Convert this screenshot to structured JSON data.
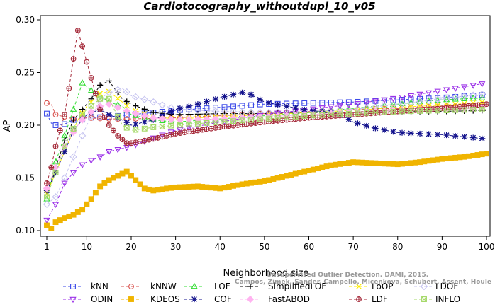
{
  "chart_data": {
    "type": "line",
    "title": "Cardiotocography_withoutdupl_10_v05",
    "xlabel": "Neighborhood size",
    "ylabel": "AP",
    "xlim": [
      1,
      100
    ],
    "ylim": [
      0.1,
      0.3
    ],
    "x_ticks": [
      1,
      10,
      20,
      30,
      40,
      50,
      60,
      70,
      80,
      90,
      100
    ],
    "y_ticks": [
      "0.10",
      "0.15",
      "0.20",
      "0.25",
      "0.30"
    ],
    "grid": false,
    "legend_placement": "bottom",
    "watermark": [
      "Campos, Zimek, Sander, Campello, Micenkova, Schubert, Assent, Houle",
      "Unsupervised Outlier Detection. DAMI, 2015."
    ],
    "series": [
      {
        "name": "kNN",
        "color": "#3b49e8",
        "marker": "square",
        "x": [
          1,
          2,
          3,
          5,
          7,
          10,
          15,
          20,
          30,
          40,
          50,
          60,
          70,
          80,
          90,
          100
        ],
        "y": [
          0.211,
          0.202,
          0.2,
          0.201,
          0.205,
          0.207,
          0.208,
          0.21,
          0.214,
          0.217,
          0.22,
          0.221,
          0.222,
          0.224,
          0.226,
          0.229
        ]
      },
      {
        "name": "kNNW",
        "color": "#d9534f",
        "marker": "circle",
        "x": [
          1,
          2,
          3,
          5,
          7,
          10,
          15,
          20,
          30,
          40,
          50,
          60,
          70,
          80,
          90,
          100
        ],
        "y": [
          0.221,
          0.22,
          0.21,
          0.208,
          0.206,
          0.207,
          0.206,
          0.206,
          0.207,
          0.209,
          0.211,
          0.213,
          0.215,
          0.216,
          0.218,
          0.219
        ]
      },
      {
        "name": "LOF",
        "color": "#33dd33",
        "marker": "triangle-up",
        "x": [
          1,
          2,
          3,
          5,
          7,
          9,
          11,
          13,
          15,
          18,
          20,
          25,
          30,
          40,
          50,
          60,
          70,
          80,
          90,
          100
        ],
        "y": [
          0.13,
          0.148,
          0.165,
          0.19,
          0.215,
          0.24,
          0.233,
          0.228,
          0.222,
          0.218,
          0.21,
          0.205,
          0.203,
          0.206,
          0.209,
          0.212,
          0.216,
          0.22,
          0.224,
          0.226
        ]
      },
      {
        "name": "SimplifiedLOF",
        "color": "#000000",
        "marker": "plus",
        "x": [
          1,
          2,
          3,
          5,
          7,
          9,
          11,
          13,
          15,
          18,
          20,
          25,
          30,
          40,
          50,
          60,
          70,
          80,
          90,
          100
        ],
        "y": [
          0.138,
          0.145,
          0.16,
          0.185,
          0.205,
          0.215,
          0.225,
          0.238,
          0.242,
          0.225,
          0.22,
          0.212,
          0.21,
          0.211,
          0.211,
          0.212,
          0.212,
          0.213,
          0.213,
          0.214
        ]
      },
      {
        "name": "LoOP",
        "color": "#ffee00",
        "marker": "x",
        "x": [
          1,
          3,
          5,
          8,
          10,
          13,
          15,
          18,
          20,
          25,
          30,
          40,
          50,
          60,
          70,
          80,
          90,
          100
        ],
        "y": [
          0.135,
          0.155,
          0.175,
          0.205,
          0.218,
          0.23,
          0.232,
          0.222,
          0.215,
          0.208,
          0.206,
          0.208,
          0.21,
          0.212,
          0.214,
          0.217,
          0.219,
          0.222
        ]
      },
      {
        "name": "LDOF",
        "color": "#c7c5f0",
        "marker": "diamond",
        "x": [
          1,
          3,
          5,
          8,
          10,
          13,
          15,
          18,
          20,
          25,
          30,
          40,
          50,
          60,
          70,
          80,
          90,
          100
        ],
        "y": [
          0.125,
          0.132,
          0.15,
          0.18,
          0.2,
          0.225,
          0.231,
          0.235,
          0.228,
          0.222,
          0.215,
          0.213,
          0.212,
          0.213,
          0.215,
          0.22,
          0.225,
          0.23
        ]
      },
      {
        "name": "ODIN",
        "color": "#9b30e8",
        "marker": "triangle-down",
        "x": [
          1,
          3,
          5,
          8,
          10,
          13,
          15,
          20,
          25,
          30,
          40,
          50,
          60,
          70,
          80,
          90,
          100
        ],
        "y": [
          0.11,
          0.125,
          0.145,
          0.16,
          0.165,
          0.17,
          0.175,
          0.18,
          0.188,
          0.195,
          0.203,
          0.21,
          0.215,
          0.22,
          0.226,
          0.233,
          0.24
        ]
      },
      {
        "name": "KDEOS",
        "color": "#f0b400",
        "marker": "square-filled",
        "x": [
          1,
          2,
          3,
          5,
          7,
          9,
          11,
          13,
          15,
          17,
          19,
          21,
          23,
          25,
          28,
          30,
          35,
          40,
          45,
          50,
          55,
          60,
          65,
          70,
          75,
          80,
          85,
          90,
          95,
          100
        ],
        "y": [
          0.105,
          0.102,
          0.108,
          0.112,
          0.115,
          0.12,
          0.13,
          0.142,
          0.148,
          0.152,
          0.156,
          0.148,
          0.14,
          0.138,
          0.14,
          0.141,
          0.142,
          0.14,
          0.144,
          0.147,
          0.152,
          0.157,
          0.162,
          0.165,
          0.164,
          0.163,
          0.165,
          0.168,
          0.17,
          0.173
        ]
      },
      {
        "name": "COF",
        "color": "#13128c",
        "marker": "asterisk",
        "x": [
          1,
          3,
          5,
          7,
          10,
          13,
          15,
          18,
          20,
          25,
          30,
          35,
          40,
          43,
          45,
          47,
          50,
          55,
          60,
          65,
          68,
          70,
          75,
          80,
          85,
          90,
          95,
          100
        ],
        "y": [
          0.138,
          0.155,
          0.175,
          0.195,
          0.21,
          0.215,
          0.21,
          0.205,
          0.2,
          0.205,
          0.215,
          0.22,
          0.226,
          0.229,
          0.231,
          0.229,
          0.222,
          0.218,
          0.214,
          0.212,
          0.208,
          0.203,
          0.197,
          0.193,
          0.192,
          0.191,
          0.189,
          0.187
        ]
      },
      {
        "name": "FastABOD",
        "color": "#ffb3f0",
        "marker": "diamond-filled",
        "x": [
          1,
          3,
          5,
          8,
          10,
          13,
          15,
          18,
          20,
          25,
          30,
          40,
          50,
          60,
          70,
          80,
          90,
          100
        ],
        "y": [
          0.14,
          0.16,
          0.18,
          0.2,
          0.21,
          0.218,
          0.22,
          0.215,
          0.212,
          0.207,
          0.205,
          0.206,
          0.208,
          0.21,
          0.212,
          0.214,
          0.215,
          0.217
        ]
      },
      {
        "name": "LDF",
        "color": "#a52a3a",
        "marker": "circle-plus",
        "x": [
          1,
          2,
          3,
          4,
          5,
          6,
          7,
          8,
          9,
          10,
          11,
          12,
          13,
          15,
          17,
          19,
          20,
          25,
          30,
          40,
          50,
          60,
          70,
          80,
          90,
          100
        ],
        "y": [
          0.145,
          0.16,
          0.18,
          0.195,
          0.21,
          0.235,
          0.263,
          0.29,
          0.275,
          0.26,
          0.245,
          0.23,
          0.215,
          0.2,
          0.19,
          0.183,
          0.183,
          0.187,
          0.192,
          0.198,
          0.203,
          0.207,
          0.21,
          0.213,
          0.216,
          0.22
        ]
      },
      {
        "name": "INFLO",
        "color": "#a6d96a",
        "marker": "square-x",
        "x": [
          1,
          3,
          5,
          8,
          10,
          13,
          15,
          18,
          20,
          25,
          30,
          40,
          50,
          60,
          70,
          80,
          90,
          100
        ],
        "y": [
          0.132,
          0.155,
          0.18,
          0.205,
          0.215,
          0.225,
          0.225,
          0.2,
          0.195,
          0.198,
          0.2,
          0.203,
          0.206,
          0.209,
          0.211,
          0.213,
          0.214,
          0.215
        ]
      }
    ]
  }
}
